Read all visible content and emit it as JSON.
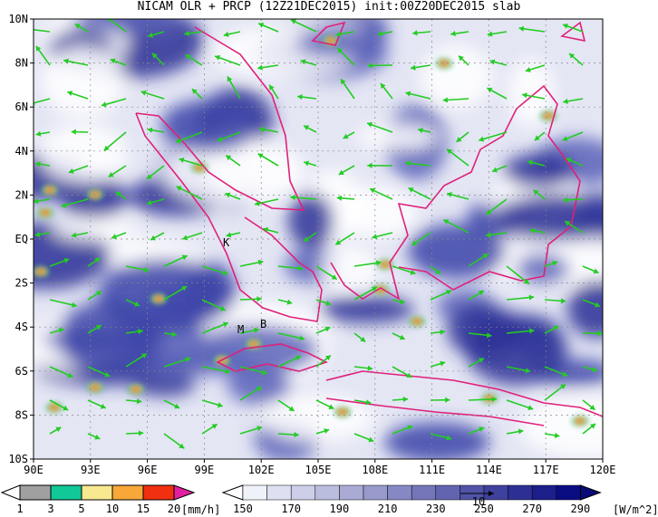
{
  "title": "NICAM OLR + PRCP (12Z21DEC2015) init:00Z20DEC2015 slab",
  "lon_labels": [
    "90E",
    "93E",
    "96E",
    "99E",
    "102E",
    "105E",
    "108E",
    "111E",
    "114E",
    "117E",
    "120E"
  ],
  "lat_labels": [
    "10N",
    "8N",
    "6N",
    "4N",
    "2N",
    "EQ",
    "2S",
    "4S",
    "6S",
    "8S",
    "10S"
  ],
  "places": [
    "K",
    "M",
    "B"
  ],
  "precip_bar": {
    "labels": [
      "1",
      "3",
      "5",
      "10",
      "15",
      "20"
    ],
    "unit": "[mm/h]"
  },
  "olr_bar": {
    "labels": [
      "150",
      "170",
      "190",
      "210",
      "230",
      "250",
      "270",
      "290"
    ],
    "unit": "[W/m^2]"
  },
  "vector_ref": "10"
}
